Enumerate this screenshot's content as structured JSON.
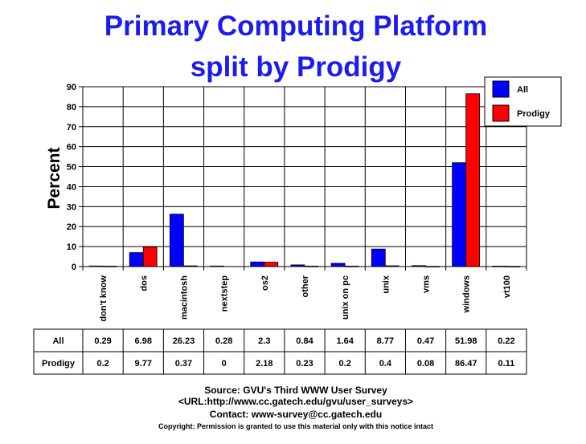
{
  "chart_data": {
    "type": "bar",
    "title": "Primary Computing Platform",
    "subtitle": "split by Prodigy",
    "xlabel": "",
    "ylabel": "Percent",
    "ylim": [
      0,
      90
    ],
    "yticks": [
      0,
      10,
      20,
      30,
      40,
      50,
      60,
      70,
      80,
      90
    ],
    "grid": true,
    "legend_position": "top-right",
    "categories": [
      "don't know",
      "dos",
      "macintosh",
      "nextstep",
      "os2",
      "other",
      "unix on pc",
      "unix",
      "vms",
      "windows",
      "vt100"
    ],
    "series": [
      {
        "name": "All",
        "color": "#0000ff",
        "values": [
          0.29,
          6.98,
          26.23,
          0.28,
          2.3,
          0.84,
          1.64,
          8.77,
          0.47,
          51.98,
          0.22
        ]
      },
      {
        "name": "Prodigy",
        "color": "#ff0000",
        "values": [
          0.2,
          9.77,
          0.37,
          0,
          2.18,
          0.23,
          0.2,
          0.4,
          0.08,
          86.47,
          0.11
        ]
      }
    ]
  },
  "footer": {
    "source": "Source: GVU's Third WWW User Survey",
    "url": "<URL:http://www.cc.gatech.edu/gvu/user_surveys>",
    "contact": "Contact: www-survey@cc.gatech.edu",
    "copyright": "Copyright: Permission is granted to use this material only with this notice intact"
  }
}
